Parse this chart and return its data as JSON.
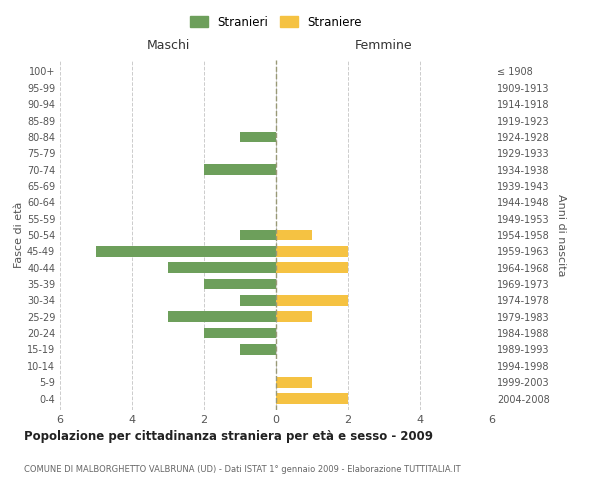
{
  "age_groups": [
    "0-4",
    "5-9",
    "10-14",
    "15-19",
    "20-24",
    "25-29",
    "30-34",
    "35-39",
    "40-44",
    "45-49",
    "50-54",
    "55-59",
    "60-64",
    "65-69",
    "70-74",
    "75-79",
    "80-84",
    "85-89",
    "90-94",
    "95-99",
    "100+"
  ],
  "birth_years": [
    "2004-2008",
    "1999-2003",
    "1994-1998",
    "1989-1993",
    "1984-1988",
    "1979-1983",
    "1974-1978",
    "1969-1973",
    "1964-1968",
    "1959-1963",
    "1954-1958",
    "1949-1953",
    "1944-1948",
    "1939-1943",
    "1934-1938",
    "1929-1933",
    "1924-1928",
    "1919-1923",
    "1914-1918",
    "1909-1913",
    "≤ 1908"
  ],
  "males": [
    0,
    0,
    0,
    1,
    2,
    3,
    1,
    2,
    3,
    5,
    1,
    0,
    0,
    0,
    2,
    0,
    1,
    0,
    0,
    0,
    0
  ],
  "females": [
    2,
    1,
    0,
    0,
    0,
    1,
    2,
    0,
    2,
    2,
    1,
    0,
    0,
    0,
    0,
    0,
    0,
    0,
    0,
    0,
    0
  ],
  "male_color": "#6d9f5b",
  "female_color": "#f5c242",
  "title": "Popolazione per cittadinanza straniera per età e sesso - 2009",
  "subtitle": "COMUNE DI MALBORGHETTO VALBRUNA (UD) - Dati ISTAT 1° gennaio 2009 - Elaborazione TUTTITALIA.IT",
  "xlabel_left": "Maschi",
  "xlabel_right": "Femmine",
  "ylabel_left": "Fasce di età",
  "ylabel_right": "Anni di nascita",
  "legend_male": "Stranieri",
  "legend_female": "Straniere",
  "xlim": 6,
  "background_color": "#ffffff",
  "grid_color": "#cccccc"
}
